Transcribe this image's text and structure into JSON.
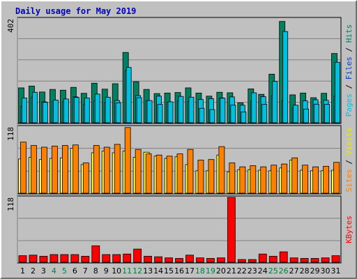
{
  "title": "Daily usage for May 2019",
  "panels": {
    "top": {
      "max_label": "402",
      "legend": [
        "Pages",
        "Files",
        "Hits"
      ],
      "legend_colors": [
        "#00c0e0",
        "#0040c0",
        "#008060"
      ]
    },
    "mid": {
      "max_label": "118",
      "legend": [
        "Sites",
        "Visits"
      ],
      "legend_colors": [
        "#ff8000",
        "#e8e800"
      ]
    },
    "bot": {
      "max_label": "118",
      "legend": [
        "KBytes"
      ],
      "legend_colors": [
        "#ff0000"
      ]
    }
  },
  "colors": {
    "hits": "#008060",
    "files": "#00c0e0",
    "pages": "#00c0e0",
    "visits": "#ffff40",
    "sites": "#ff8000",
    "kbytes": "#ff0000",
    "weekend_day": "#008040",
    "weekday_day": "#000000"
  },
  "chart_data": {
    "type": "bar",
    "title": "Daily usage for May 2019",
    "categories": [
      "1",
      "2",
      "3",
      "4",
      "5",
      "6",
      "7",
      "8",
      "9",
      "10",
      "11",
      "12",
      "13",
      "14",
      "15",
      "16",
      "17",
      "18",
      "19",
      "20",
      "21",
      "22",
      "23",
      "24",
      "25",
      "26",
      "27",
      "28",
      "29",
      "30",
      "31"
    ],
    "weekend_days": [
      "4",
      "5",
      "11",
      "12",
      "18",
      "19",
      "25",
      "26"
    ],
    "panels": [
      {
        "name": "top",
        "ylim": [
          0,
          402
        ],
        "series": [
          {
            "name": "Hits",
            "values": [
              135,
              142,
              119,
              129,
              126,
              137,
              114,
              153,
              130,
              151,
              272,
              159,
              129,
              113,
              115,
              117,
              135,
              115,
              103,
              118,
              116,
              77,
              131,
              110,
              188,
              392,
              108,
              115,
              97,
              114,
              268
            ]
          },
          {
            "name": "Files",
            "values": [
              64,
              98,
              81,
              81,
              81,
              100,
              71,
              85,
              77,
              86,
              201,
              105,
              85,
              103,
              80,
              85,
              82,
              90,
              93,
              96,
              100,
              68,
              83,
              101,
              105,
              86,
              58,
              85,
              89,
              87,
              103
            ]
          },
          {
            "name": "Pages",
            "values": [
              96,
              118,
              79,
              88,
              92,
              98,
              96,
              111,
              99,
              77,
              214,
              97,
              86,
              71,
              81,
              102,
              99,
              56,
              51,
              95,
              68,
              42,
              116,
              71,
              160,
              353,
              68,
              53,
              72,
              71,
              234
            ]
          }
        ]
      },
      {
        "name": "mid",
        "ylim": [
          0,
          118
        ],
        "series": [
          {
            "name": "Visits",
            "values": [
              61,
              64,
              60,
              62,
              63,
              80,
              51,
              72,
              75,
              72,
              75,
              64,
              73,
              66,
              62,
              65,
              51,
              40,
              40,
              68,
              38,
              42,
              42,
              41,
              40,
              45,
              59,
              41,
              40,
              40,
              41
            ]
          },
          {
            "name": "Sites",
            "values": [
              91,
              85,
              82,
              84,
              85,
              86,
              54,
              85,
              82,
              87,
              117,
              78,
              70,
              68,
              66,
              70,
              78,
              59,
              60,
              83,
              54,
              47,
              49,
              47,
              50,
              52,
              63,
              50,
              47,
              48,
              55
            ]
          }
        ]
      },
      {
        "name": "bot",
        "ylim": [
          0,
          118
        ],
        "series": [
          {
            "name": "KBytes",
            "values": [
              12,
              13,
              11,
              14,
              14,
              14,
              11,
              30,
              14,
              14,
              15,
              24,
              11,
              10,
              8,
              7,
              13,
              8,
              7,
              8,
              118,
              5,
              5,
              15,
              11,
              19,
              8,
              7,
              7,
              8,
              12
            ]
          }
        ]
      }
    ]
  }
}
